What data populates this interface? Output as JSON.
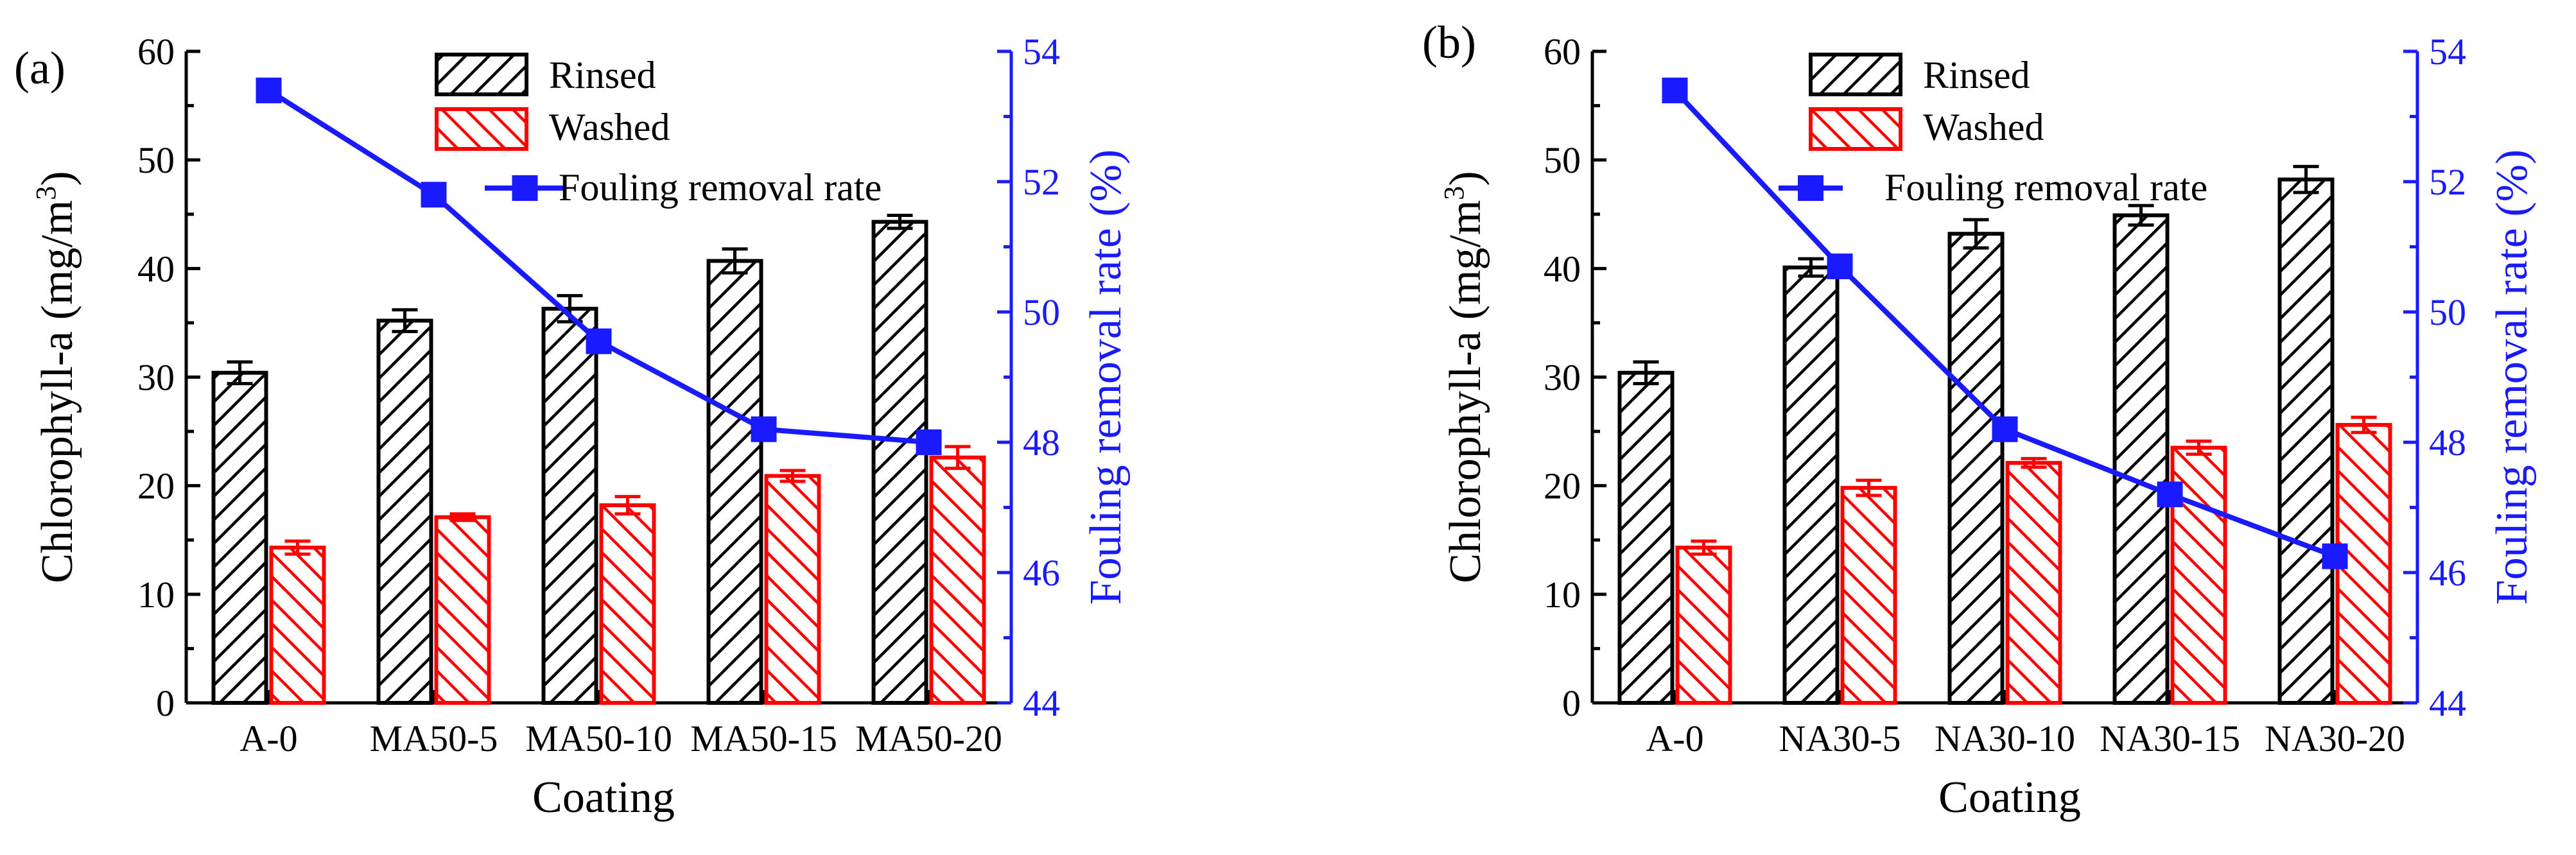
{
  "chart_data": [
    {
      "type": "bar",
      "panel_label": "(a)",
      "categories": [
        "A-0",
        "MA50-5",
        "MA50-10",
        "MA50-15",
        "MA50-20"
      ],
      "series": [
        {
          "name": "Rinsed",
          "values": [
            30.4,
            35.2,
            36.3,
            40.7,
            44.3
          ],
          "errors": [
            1.0,
            1.0,
            1.2,
            1.1,
            0.6
          ],
          "color": "#000000",
          "hatch": "forward"
        },
        {
          "name": "Washed",
          "values": [
            14.3,
            17.1,
            18.2,
            20.9,
            22.6
          ],
          "errors": [
            0.6,
            0.3,
            0.8,
            0.5,
            1.0
          ],
          "color": "#ff0000",
          "hatch": "backward"
        }
      ],
      "line_series": {
        "name": "Fouling removal rate",
        "values": [
          53.4,
          51.8,
          49.55,
          48.2,
          48.0
        ],
        "color": "#1a1aff"
      },
      "xlabel": "Coating",
      "ylabel": "Chlorophyll-a (mg/m",
      "ylabel_sup": "3",
      "ylabel_end": ")",
      "y2label": "Fouling removal rate (%)",
      "ylim": [
        0,
        60
      ],
      "y2lim": [
        44,
        54
      ],
      "yticks": [
        "0",
        "10",
        "20",
        "30",
        "40",
        "50",
        "60"
      ],
      "y2ticks": [
        "44",
        "46",
        "48",
        "50",
        "52",
        "54"
      ],
      "legend_position": "top-center"
    },
    {
      "type": "bar",
      "panel_label": "(b)",
      "categories": [
        "A-0",
        "NA30-5",
        "NA30-10",
        "NA30-15",
        "NA30-20"
      ],
      "series": [
        {
          "name": "Rinsed",
          "values": [
            30.4,
            40.1,
            43.2,
            44.9,
            48.2
          ],
          "errors": [
            1.0,
            0.8,
            1.3,
            0.9,
            1.2
          ],
          "color": "#000000",
          "hatch": "forward"
        },
        {
          "name": "Washed",
          "values": [
            14.3,
            19.8,
            22.1,
            23.5,
            25.6
          ],
          "errors": [
            0.6,
            0.7,
            0.4,
            0.6,
            0.7
          ],
          "color": "#ff0000",
          "hatch": "backward"
        }
      ],
      "line_series": {
        "name": "Fouling removal rate",
        "values": [
          53.4,
          50.7,
          48.2,
          47.2,
          46.25
        ],
        "color": "#1a1aff"
      },
      "xlabel": "Coating",
      "ylabel": "Chlorophyll-a (mg/m",
      "ylabel_sup": "3",
      "ylabel_end": ")",
      "y2label": "Fouling removal rate (%)",
      "ylim": [
        0,
        60
      ],
      "y2lim": [
        44,
        54
      ],
      "yticks": [
        "0",
        "10",
        "20",
        "30",
        "40",
        "50",
        "60"
      ],
      "y2ticks": [
        "44",
        "46",
        "48",
        "50",
        "52",
        "54"
      ],
      "legend_position": "top-center"
    }
  ]
}
